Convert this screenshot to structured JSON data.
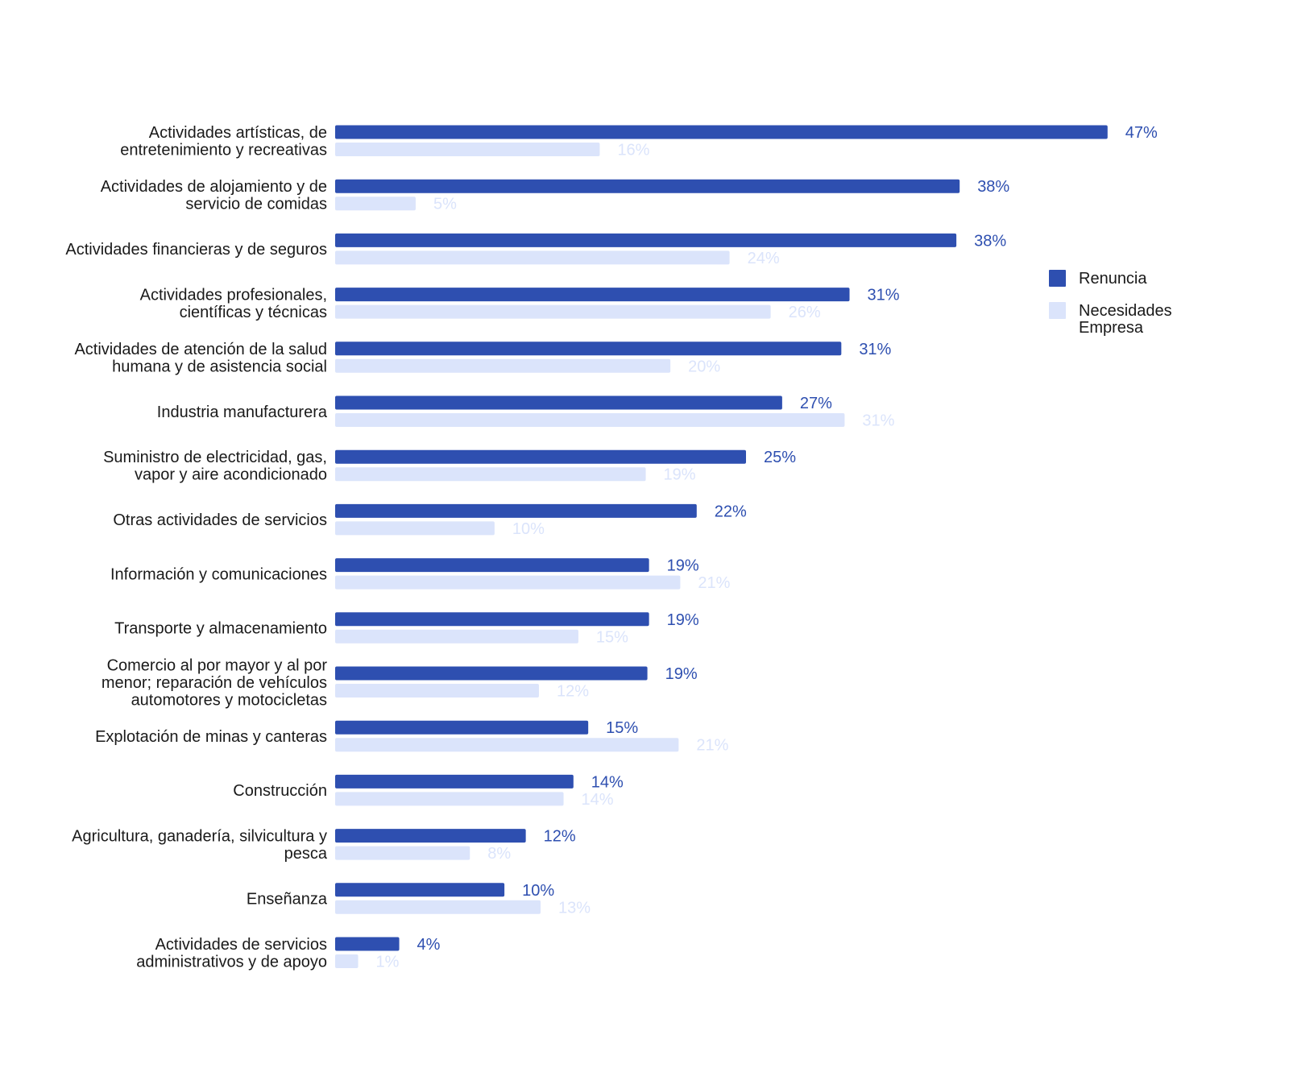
{
  "chart_data": {
    "type": "bar",
    "orientation": "horizontal",
    "title": "",
    "xlabel": "",
    "ylabel": "",
    "xlim": [
      0,
      47
    ],
    "grid": false,
    "legend_position": "right",
    "colors": {
      "Renuncia": "#2e4fb0",
      "Necesidades Empresa": "#dbe4fb"
    },
    "categories": [
      [
        "Actividades artísticas, de",
        "entretenimiento y recreativas"
      ],
      [
        "Actividades de alojamiento y de",
        "servicio de comidas"
      ],
      [
        "Actividades financieras y de seguros"
      ],
      [
        "Actividades profesionales,",
        "científicas y técnicas"
      ],
      [
        "Actividades de atención de la salud",
        "humana y de asistencia social"
      ],
      [
        "Industria manufacturera"
      ],
      [
        "Suministro de electricidad, gas,",
        "vapor y aire acondicionado"
      ],
      [
        "Otras actividades de servicios"
      ],
      [
        "Información y comunicaciones"
      ],
      [
        "Transporte y almacenamiento"
      ],
      [
        "Comercio al por mayor y al por",
        "menor; reparación de vehículos",
        "automotores y motocicletas"
      ],
      [
        "Explotación de minas y canteras"
      ],
      [
        "Construcción"
      ],
      [
        "Agricultura, ganadería, silvicultura y",
        "pesca"
      ],
      [
        "Enseñanza"
      ],
      [
        "Actividades de servicios",
        "administrativos y de apoyo"
      ]
    ],
    "series": [
      {
        "name": "Renuncia",
        "values": [
          0.47,
          0.38,
          0.378,
          0.313,
          0.308,
          0.272,
          0.25,
          0.22,
          0.191,
          0.191,
          0.19,
          0.154,
          0.145,
          0.116,
          0.103,
          0.039
        ],
        "labels": [
          "47%",
          "38%",
          "38%",
          "31%",
          "31%",
          "27%",
          "25%",
          "22%",
          "19%",
          "19%",
          "19%",
          "15%",
          "14%",
          "12%",
          "10%",
          "4%"
        ]
      },
      {
        "name": "Necesidades Empresa",
        "values": [
          0.161,
          0.049,
          0.24,
          0.265,
          0.204,
          0.31,
          0.189,
          0.097,
          0.21,
          0.148,
          0.124,
          0.209,
          0.139,
          0.082,
          0.125,
          0.014
        ],
        "labels": [
          "16%",
          "5%",
          "24%",
          "26%",
          "20%",
          "31%",
          "19%",
          "10%",
          "21%",
          "15%",
          "12%",
          "21%",
          "14%",
          "8%",
          "13%",
          "1%"
        ]
      }
    ],
    "legend": [
      {
        "series": "Renuncia",
        "lines": [
          "Renuncia"
        ]
      },
      {
        "series": "Necesidades Empresa",
        "lines": [
          "Necesidades",
          "Empresa"
        ]
      }
    ]
  }
}
